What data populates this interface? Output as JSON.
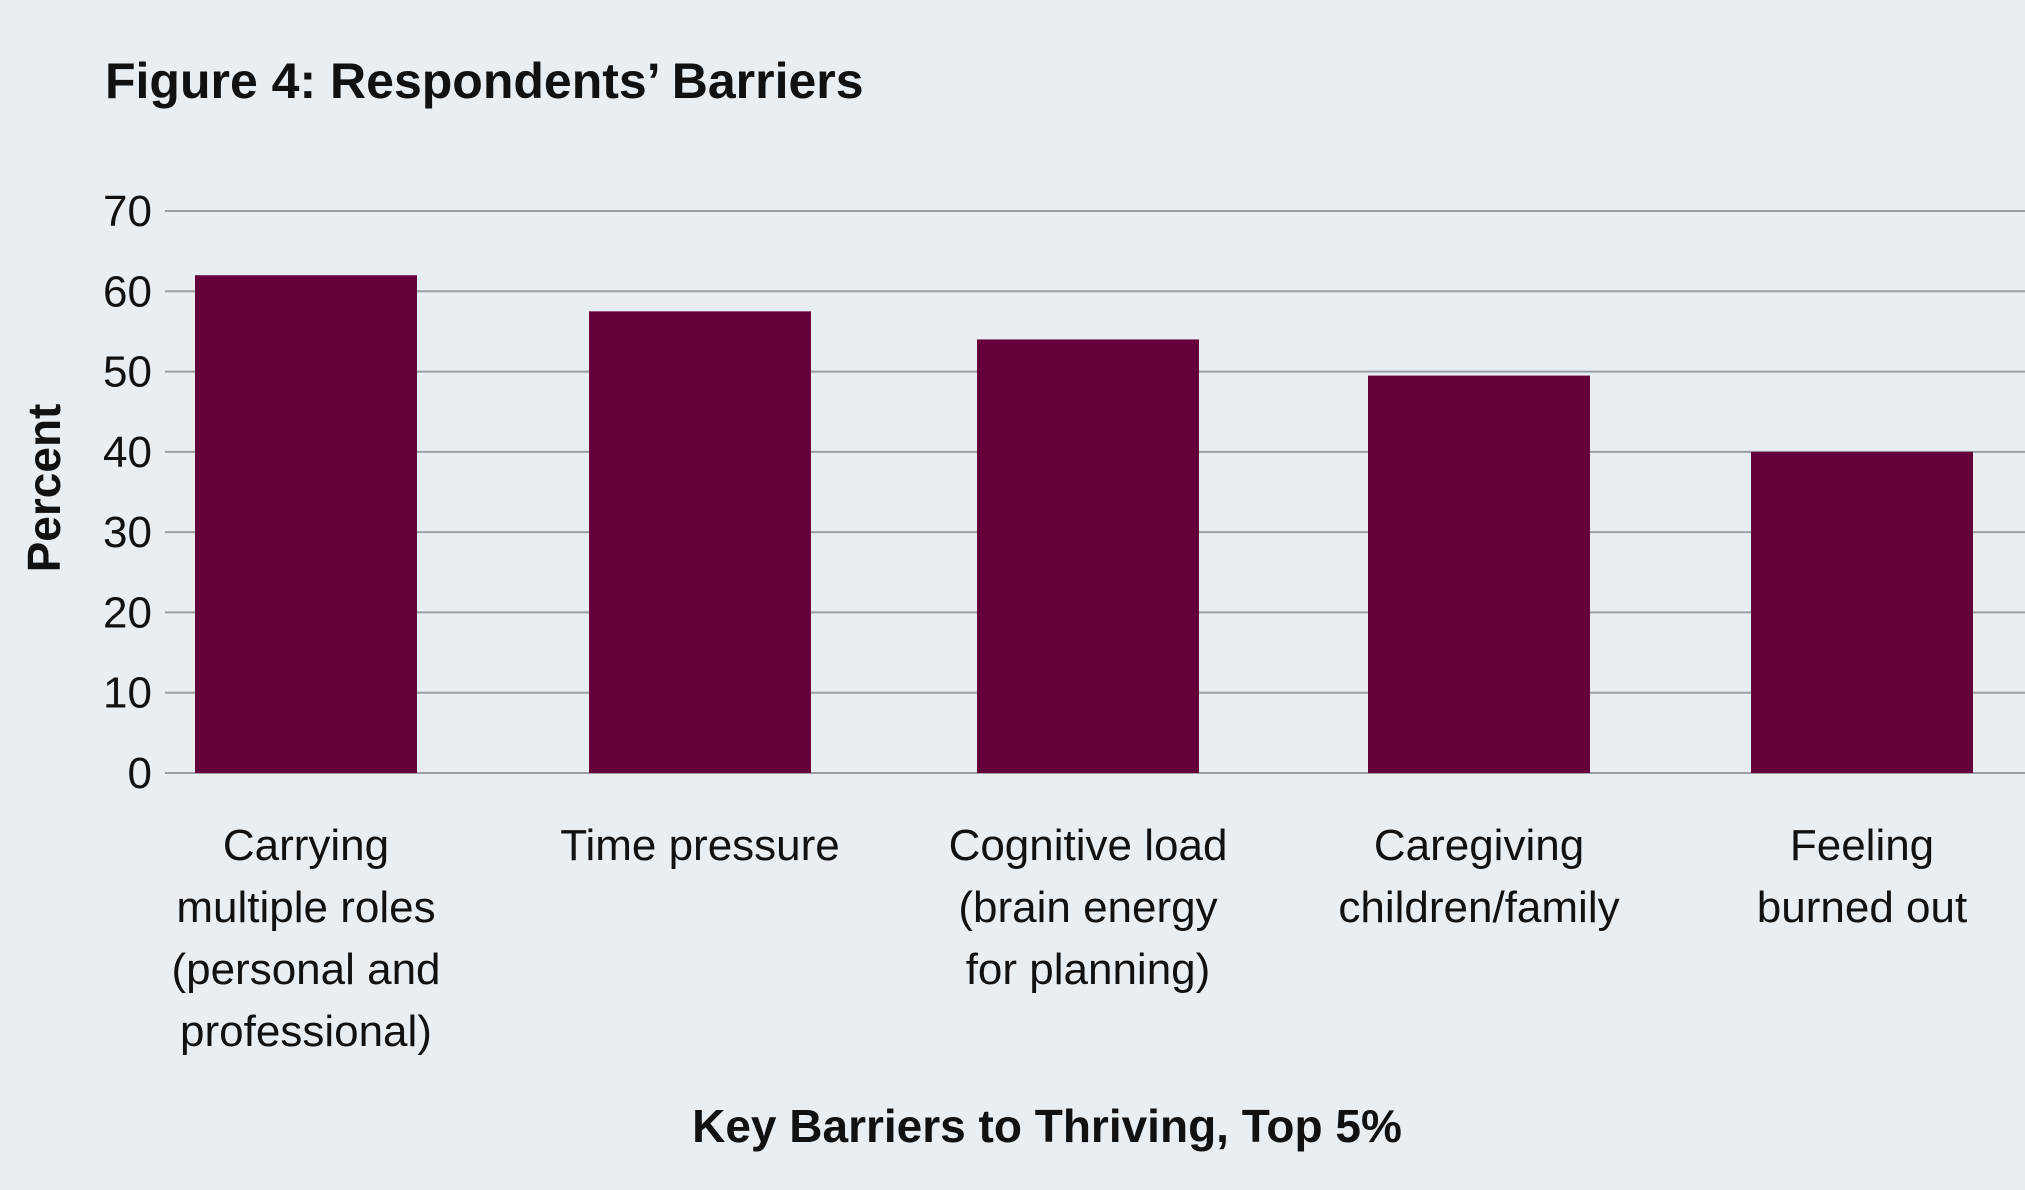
{
  "chart_data": {
    "type": "bar",
    "title": "Figure 4: Respondents’ Barriers",
    "xlabel": "Key Barriers to Thriving, Top 5%",
    "ylabel": "Percent",
    "categories": [
      [
        "Carrying",
        "multiple roles",
        "(personal and",
        "professional)"
      ],
      [
        "Time pressure"
      ],
      [
        "Cognitive load",
        "(brain energy",
        "for planning)"
      ],
      [
        "Caregiving",
        "children/family"
      ],
      [
        "Feeling",
        "burned out"
      ]
    ],
    "values": [
      62,
      57.5,
      54,
      49.5,
      40
    ],
    "ylim": [
      0,
      70
    ],
    "yticks": [
      0,
      10,
      20,
      30,
      40,
      50,
      60,
      70
    ],
    "grid": true,
    "bar_color": "#66003a",
    "grid_color": "#9aa0a6",
    "background_color": "#e9eef2"
  }
}
